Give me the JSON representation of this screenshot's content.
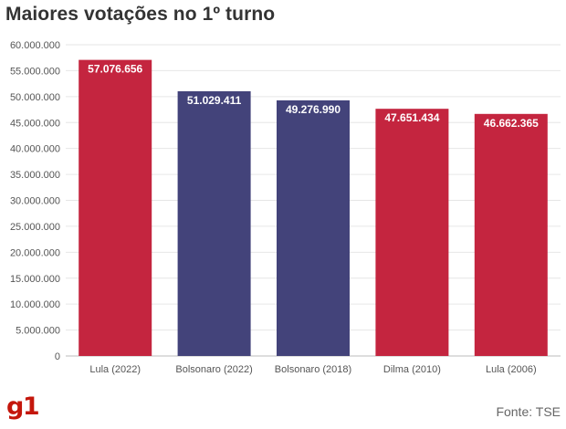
{
  "header": {
    "title": "Maiores votações no 1º turno"
  },
  "footer": {
    "logo_text": "g1",
    "source": "Fonte: TSE"
  },
  "colors": {
    "red": "#c4253f",
    "blue": "#43437a",
    "logo": "#c4170c"
  },
  "chart_data": {
    "type": "bar",
    "title": "Maiores votações no 1º turno",
    "xlabel": "",
    "ylabel": "",
    "ylim": [
      0,
      60000000
    ],
    "yticks": [
      0,
      5000000,
      10000000,
      15000000,
      20000000,
      25000000,
      30000000,
      35000000,
      40000000,
      45000000,
      50000000,
      55000000,
      60000000
    ],
    "ytick_labels": [
      "0",
      "5.000.000",
      "10.000.000",
      "15.000.000",
      "20.000.000",
      "25.000.000",
      "30.000.000",
      "35.000.000",
      "40.000.000",
      "45.000.000",
      "50.000.000",
      "55.000.000",
      "60.000.000"
    ],
    "categories": [
      "Lula (2022)",
      "Bolsonaro (2022)",
      "Bolsonaro (2018)",
      "Dilma (2010)",
      "Lula (2006)"
    ],
    "values": [
      57076656,
      51029411,
      49276990,
      47651434,
      46662365
    ],
    "value_labels": [
      "57.076.656",
      "51.029.411",
      "49.276.990",
      "47.651.434",
      "46.662.365"
    ],
    "bar_colors": [
      "#c4253f",
      "#43437a",
      "#43437a",
      "#c4253f",
      "#c4253f"
    ],
    "grid": true,
    "legend": "none"
  }
}
